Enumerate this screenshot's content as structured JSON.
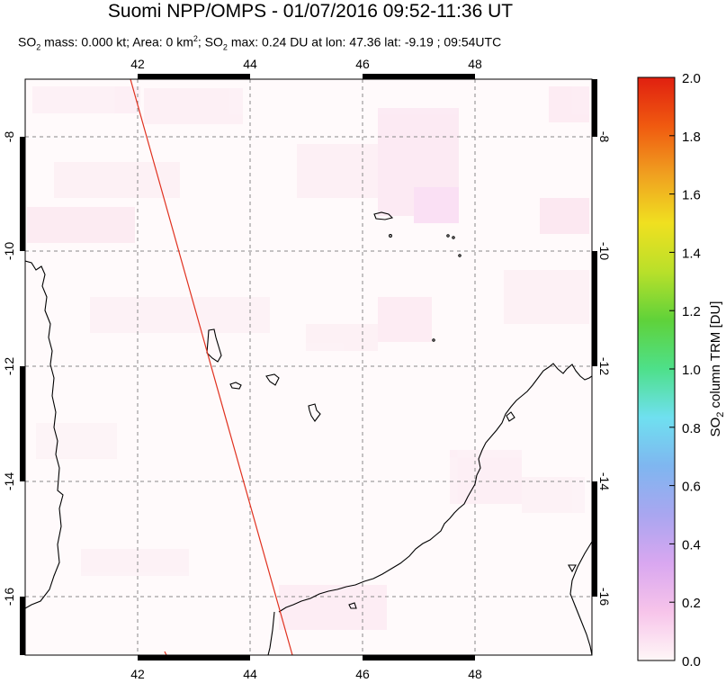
{
  "header": {
    "title": "Suomi NPP/OMPS - 01/07/2016 09:52-11:36 UT",
    "subtitle_parts": [
      "SO",
      "2",
      " mass: 0.000 kt; Area: 0 km",
      "2",
      "; SO",
      "2",
      " max: 0.24 DU at lon: 47.36 lat: -9.19 ; 09:54UTC"
    ]
  },
  "map": {
    "lon_ticks_top": [
      "42",
      "44",
      "46",
      "48"
    ],
    "lon_ticks_bottom": [
      "42",
      "44",
      "46",
      "48"
    ],
    "lat_ticks_left": [
      "-8",
      "-10",
      "-12",
      "-14",
      "-16"
    ],
    "lat_ticks_right": [
      "-8",
      "-10",
      "-12",
      "-14",
      "-16"
    ],
    "lon_range": [
      40,
      50
    ],
    "lat_range": [
      -17.2,
      -6.9
    ],
    "gridlines": "dashed",
    "orbit_track_color": "#e0301e"
  },
  "colorbar": {
    "title": "SO2 column TRM [DU]",
    "title_parts": [
      "SO",
      "2",
      " column TRM [DU]"
    ],
    "tick_labels": [
      "2.0",
      "1.8",
      "1.6",
      "1.4",
      "1.2",
      "1.0",
      "0.8",
      "0.6",
      "0.4",
      "0.2",
      "0.0"
    ],
    "range": [
      0.0,
      2.0
    ],
    "colors": [
      "#fff7f7",
      "#f7c4ea",
      "#d9a7f0",
      "#a9a6f0",
      "#7fb6f0",
      "#6fe0f0",
      "#4ee08a",
      "#5fd23a",
      "#b9e02a",
      "#f0e020",
      "#f0a020",
      "#f05a10",
      "#e02010"
    ]
  }
}
